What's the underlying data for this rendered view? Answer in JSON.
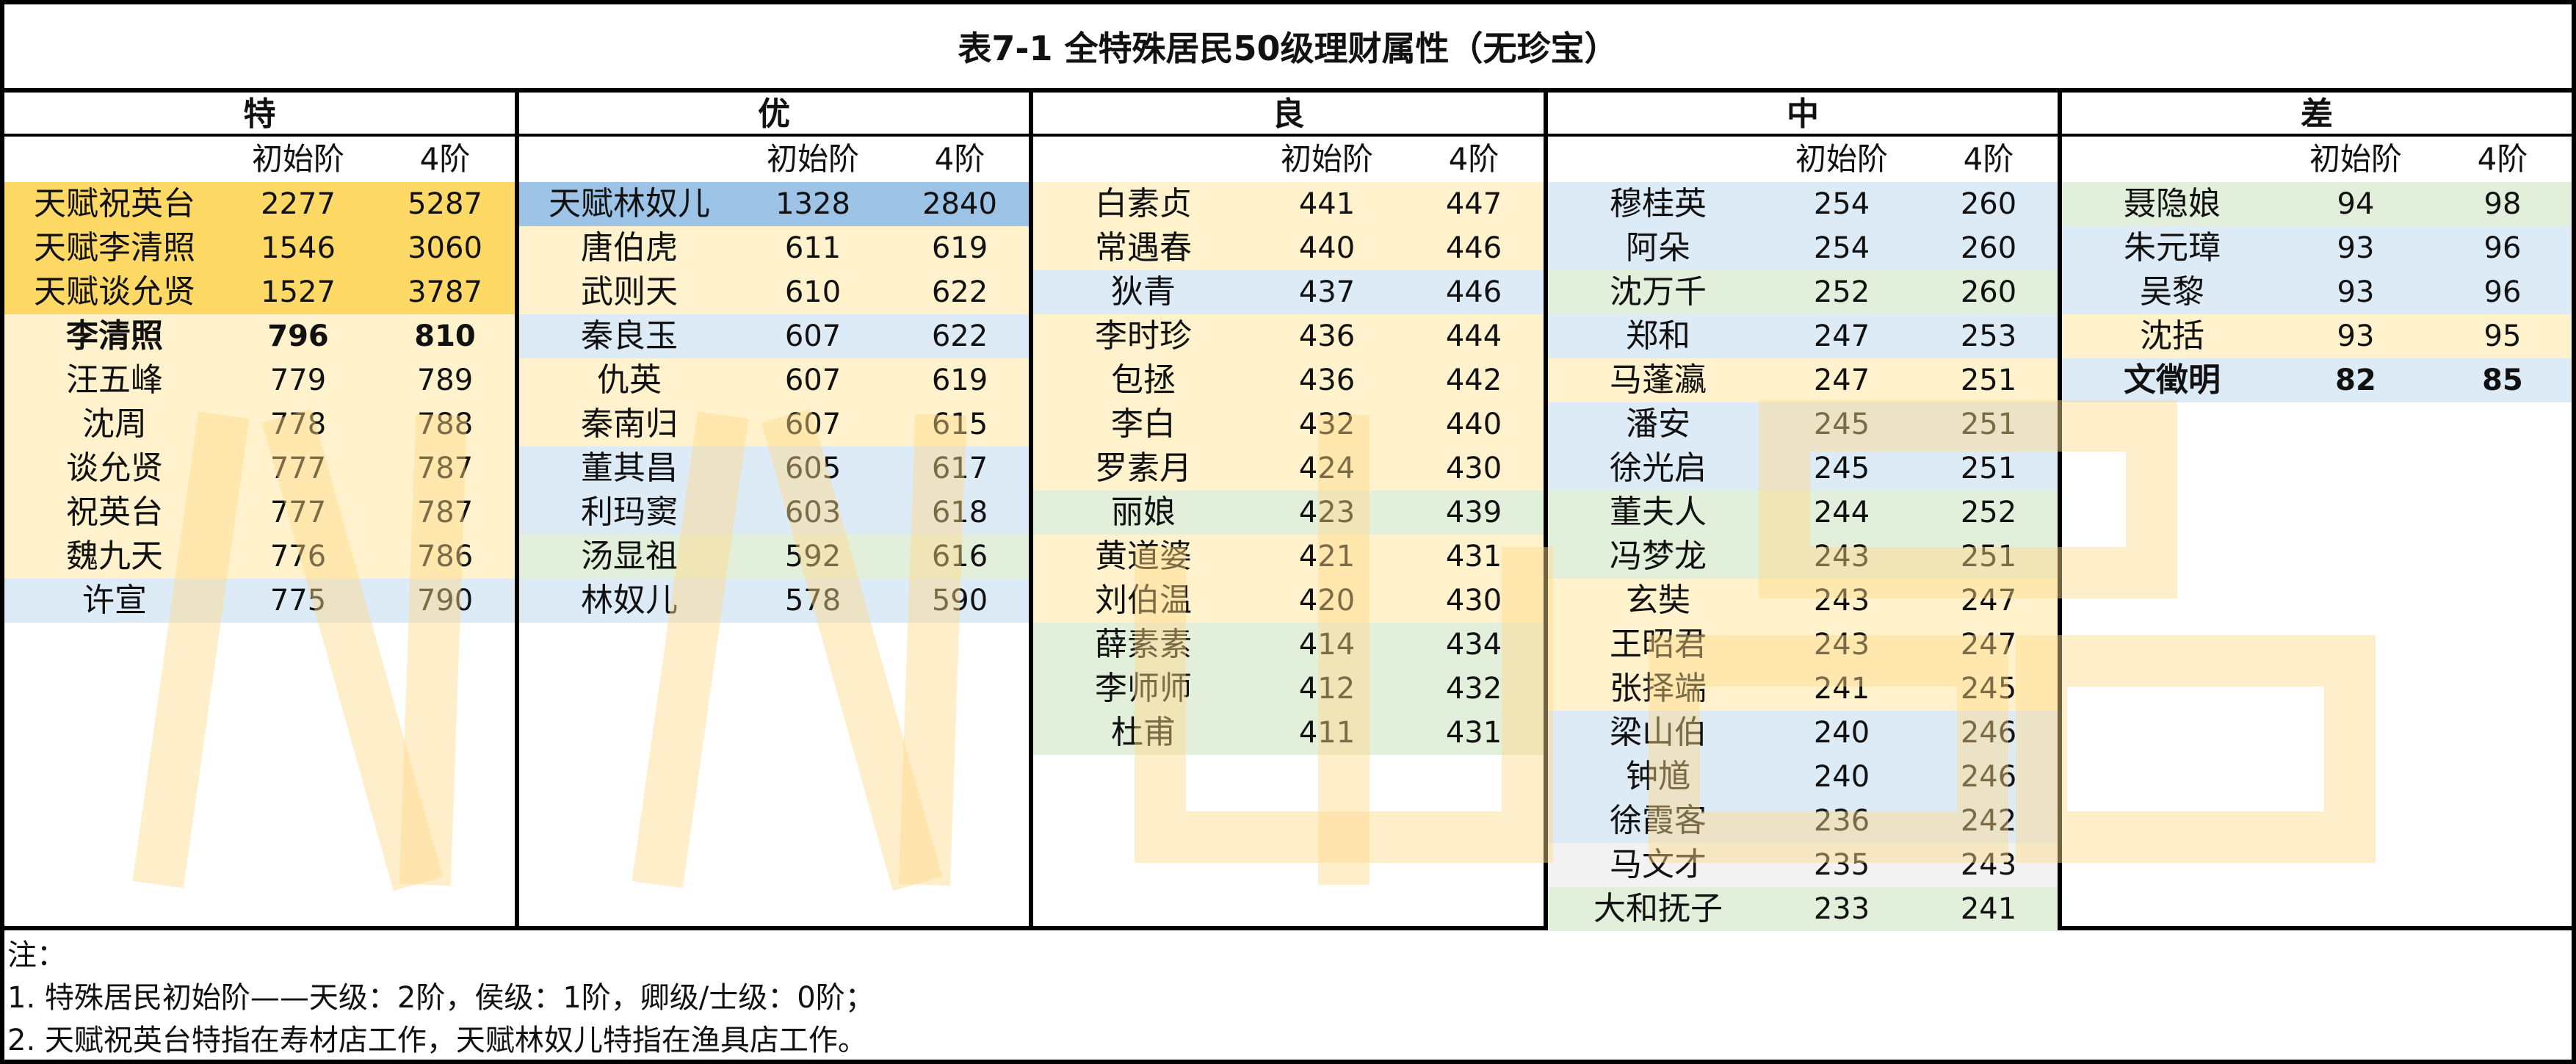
{
  "title": "表7-1 全特殊居民50级理财属性（无珍宝）",
  "subheaders": {
    "initial": "初始阶",
    "tier4": "4阶"
  },
  "colors": {
    "gold": "#ffd966",
    "cream": "#fff2cc",
    "blue_strong": "#9dc3e6",
    "blue": "#ddebf7",
    "green": "#e2efda",
    "gray": "#f2f2f2"
  },
  "groups": [
    {
      "label": "特",
      "rows": [
        {
          "name": "天赋祝英台",
          "initial": "2277",
          "tier4": "5287",
          "color": "gold",
          "bold": false
        },
        {
          "name": "天赋李清照",
          "initial": "1546",
          "tier4": "3060",
          "color": "gold",
          "bold": false
        },
        {
          "name": "天赋谈允贤",
          "initial": "1527",
          "tier4": "3787",
          "color": "gold",
          "bold": false
        },
        {
          "name": "李清照",
          "initial": "796",
          "tier4": "810",
          "color": "cream",
          "bold": true
        },
        {
          "name": "汪五峰",
          "initial": "779",
          "tier4": "789",
          "color": "cream",
          "bold": false
        },
        {
          "name": "沈周",
          "initial": "778",
          "tier4": "788",
          "color": "cream",
          "bold": false
        },
        {
          "name": "谈允贤",
          "initial": "777",
          "tier4": "787",
          "color": "cream",
          "bold": false
        },
        {
          "name": "祝英台",
          "initial": "777",
          "tier4": "787",
          "color": "cream",
          "bold": false
        },
        {
          "name": "魏九天",
          "initial": "776",
          "tier4": "786",
          "color": "cream",
          "bold": false
        },
        {
          "name": "许宣",
          "initial": "775",
          "tier4": "790",
          "color": "blue",
          "bold": false
        }
      ]
    },
    {
      "label": "优",
      "rows": [
        {
          "name": "天赋林奴儿",
          "initial": "1328",
          "tier4": "2840",
          "color": "blue_strong",
          "bold": false
        },
        {
          "name": "唐伯虎",
          "initial": "611",
          "tier4": "619",
          "color": "cream",
          "bold": false
        },
        {
          "name": "武则天",
          "initial": "610",
          "tier4": "622",
          "color": "cream",
          "bold": false
        },
        {
          "name": "秦良玉",
          "initial": "607",
          "tier4": "622",
          "color": "blue",
          "bold": false
        },
        {
          "name": "仇英",
          "initial": "607",
          "tier4": "619",
          "color": "cream",
          "bold": false
        },
        {
          "name": "秦南归",
          "initial": "607",
          "tier4": "615",
          "color": "cream",
          "bold": false
        },
        {
          "name": "董其昌",
          "initial": "605",
          "tier4": "617",
          "color": "blue",
          "bold": false
        },
        {
          "name": "利玛窦",
          "initial": "603",
          "tier4": "618",
          "color": "blue",
          "bold": false
        },
        {
          "name": "汤显祖",
          "initial": "592",
          "tier4": "616",
          "color": "green",
          "bold": false
        },
        {
          "name": "林奴儿",
          "initial": "578",
          "tier4": "590",
          "color": "blue",
          "bold": false
        }
      ]
    },
    {
      "label": "良",
      "rows": [
        {
          "name": "白素贞",
          "initial": "441",
          "tier4": "447",
          "color": "cream",
          "bold": false
        },
        {
          "name": "常遇春",
          "initial": "440",
          "tier4": "446",
          "color": "cream",
          "bold": false
        },
        {
          "name": "狄青",
          "initial": "437",
          "tier4": "446",
          "color": "blue",
          "bold": false
        },
        {
          "name": "李时珍",
          "initial": "436",
          "tier4": "444",
          "color": "cream",
          "bold": false
        },
        {
          "name": "包拯",
          "initial": "436",
          "tier4": "442",
          "color": "cream",
          "bold": false
        },
        {
          "name": "李白",
          "initial": "432",
          "tier4": "440",
          "color": "cream",
          "bold": false
        },
        {
          "name": "罗素月",
          "initial": "424",
          "tier4": "430",
          "color": "cream",
          "bold": false
        },
        {
          "name": "丽娘",
          "initial": "423",
          "tier4": "439",
          "color": "green",
          "bold": false
        },
        {
          "name": "黄道婆",
          "initial": "421",
          "tier4": "431",
          "color": "cream",
          "bold": false
        },
        {
          "name": "刘伯温",
          "initial": "420",
          "tier4": "430",
          "color": "cream",
          "bold": false
        },
        {
          "name": "薛素素",
          "initial": "414",
          "tier4": "434",
          "color": "green",
          "bold": false
        },
        {
          "name": "李师师",
          "initial": "412",
          "tier4": "432",
          "color": "green",
          "bold": false
        },
        {
          "name": "杜甫",
          "initial": "411",
          "tier4": "431",
          "color": "green",
          "bold": false
        }
      ]
    },
    {
      "label": "中",
      "rows": [
        {
          "name": "穆桂英",
          "initial": "254",
          "tier4": "260",
          "color": "blue",
          "bold": false
        },
        {
          "name": "阿朵",
          "initial": "254",
          "tier4": "260",
          "color": "blue",
          "bold": false
        },
        {
          "name": "沈万千",
          "initial": "252",
          "tier4": "260",
          "color": "green",
          "bold": false
        },
        {
          "name": "郑和",
          "initial": "247",
          "tier4": "253",
          "color": "blue",
          "bold": false
        },
        {
          "name": "马蓬瀛",
          "initial": "247",
          "tier4": "251",
          "color": "cream",
          "bold": false
        },
        {
          "name": "潘安",
          "initial": "245",
          "tier4": "251",
          "color": "blue",
          "bold": false
        },
        {
          "name": "徐光启",
          "initial": "245",
          "tier4": "251",
          "color": "blue",
          "bold": false
        },
        {
          "name": "董夫人",
          "initial": "244",
          "tier4": "252",
          "color": "green",
          "bold": false
        },
        {
          "name": "冯梦龙",
          "initial": "243",
          "tier4": "251",
          "color": "green",
          "bold": false
        },
        {
          "name": "玄奘",
          "initial": "243",
          "tier4": "247",
          "color": "cream",
          "bold": false
        },
        {
          "name": "王昭君",
          "initial": "243",
          "tier4": "247",
          "color": "cream",
          "bold": false
        },
        {
          "name": "张择端",
          "initial": "241",
          "tier4": "245",
          "color": "cream",
          "bold": false
        },
        {
          "name": "梁山伯",
          "initial": "240",
          "tier4": "246",
          "color": "blue",
          "bold": false
        },
        {
          "name": "钟馗",
          "initial": "240",
          "tier4": "246",
          "color": "blue",
          "bold": false
        },
        {
          "name": "徐霞客",
          "initial": "236",
          "tier4": "242",
          "color": "blue",
          "bold": false
        },
        {
          "name": "马文才",
          "initial": "235",
          "tier4": "243",
          "color": "gray",
          "bold": false
        },
        {
          "name": "大和抚子",
          "initial": "233",
          "tier4": "241",
          "color": "green",
          "bold": false
        }
      ]
    },
    {
      "label": "差",
      "rows": [
        {
          "name": "聂隐娘",
          "initial": "94",
          "tier4": "98",
          "color": "green",
          "bold": false
        },
        {
          "name": "朱元璋",
          "initial": "93",
          "tier4": "96",
          "color": "blue",
          "bold": false
        },
        {
          "name": "吴黎",
          "initial": "93",
          "tier4": "96",
          "color": "blue",
          "bold": false
        },
        {
          "name": "沈括",
          "initial": "93",
          "tier4": "95",
          "color": "cream",
          "bold": false
        },
        {
          "name": "文徵明",
          "initial": "82",
          "tier4": "85",
          "color": "blue",
          "bold": true
        }
      ]
    }
  ],
  "notes": [
    "注：",
    "1. 特殊居民初始阶——天级：2阶，侯级：1阶，卿级/士级：0阶；",
    "2. 天赋祝英台特指在寿材店工作，天赋林奴儿特指在渔具店工作。"
  ],
  "watermark": "小小出品"
}
